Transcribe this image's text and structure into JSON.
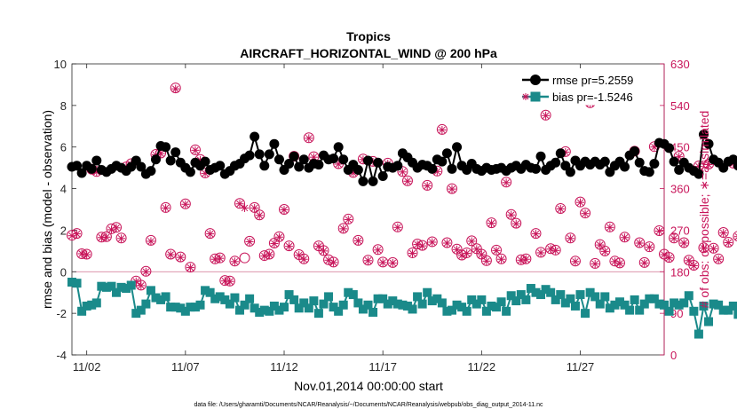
{
  "chart_data": {
    "type": "line",
    "title": "Tropics",
    "subtitle": "AIRCRAFT_HORIZONTAL_WIND @ 200 hPa",
    "xlabel": "Nov.01,2014 00:00:00 start",
    "ylabel_left": "rmse and bias (model - observation)",
    "ylabel_right": "# of obs: o=possible; ∗=assimilated",
    "footer": "data file: /Users/gharamti/Documents/NCAR/Reanalysis/~/Documents/NCAR/Reanalysis/webpub/obs_diag_output_2014-11.nc",
    "x_ticks": [
      {
        "day": 2,
        "label": "11/02"
      },
      {
        "day": 7,
        "label": "11/07"
      },
      {
        "day": 12,
        "label": "11/12"
      },
      {
        "day": 17,
        "label": "11/17"
      },
      {
        "day": 22,
        "label": "11/22"
      },
      {
        "day": 27,
        "label": "11/27"
      }
    ],
    "xlim": [
      1.25,
      31.25
    ],
    "ylim_left": [
      -4,
      10
    ],
    "ylim_right": [
      0,
      630
    ],
    "y_ticks_left": [
      -4,
      -2,
      0,
      2,
      4,
      6,
      8,
      10
    ],
    "y_ticks_right": [
      0,
      90,
      180,
      270,
      360,
      450,
      540,
      630
    ],
    "grid": false,
    "legend_position": "top-right",
    "colors": {
      "rmse": "#000000",
      "bias": "#1a8a8a",
      "obs": "#c8155a"
    },
    "series": [
      {
        "name": "rmse pr=5.2559",
        "values": [
          5.05,
          5.1,
          4.75,
          5.1,
          4.95,
          5.35,
          4.9,
          4.8,
          4.95,
          5.1,
          5.0,
          4.85,
          5.05,
          5.35,
          5.05,
          4.7,
          4.85,
          5.4,
          6.05,
          6.0,
          5.35,
          5.75,
          5.25,
          5.0,
          4.8,
          5.25,
          5.1,
          5.3,
          4.9,
          5.0,
          5.1,
          4.7,
          4.85,
          5.1,
          5.2,
          5.45,
          5.6,
          6.5,
          5.65,
          5.1,
          5.65,
          6.15,
          5.4,
          4.9,
          5.2,
          5.55,
          5.05,
          5.4,
          5.0,
          5.2,
          5.15,
          5.6,
          5.4,
          5.45,
          6.0,
          5.4,
          4.9,
          5.15,
          4.9,
          4.35,
          5.35,
          4.35,
          5.25,
          4.6,
          5.05,
          5.0,
          5.1,
          5.7,
          5.5,
          5.25,
          5.0,
          5.15,
          5.1,
          4.95,
          5.4,
          5.3,
          5.7,
          4.95,
          6.0,
          5.1,
          4.9,
          5.2,
          4.95,
          4.85,
          5.0,
          4.9,
          4.95,
          5.0,
          4.85,
          5.0,
          5.1,
          4.95,
          5.15,
          5.0,
          4.95,
          5.55,
          4.9,
          5.1,
          5.25,
          5.7,
          5.1,
          4.8,
          5.35,
          5.1,
          5.3,
          5.15,
          5.3,
          5.15,
          5.3,
          4.8,
          5.1,
          5.3,
          5.05,
          5.6,
          5.8,
          5.25,
          4.85,
          4.8,
          5.2,
          6.2,
          6.15,
          5.95,
          5.3,
          4.9,
          5.25,
          5.0,
          4.85,
          4.7,
          6.6,
          6.15,
          5.4,
          5.25,
          5.0,
          5.3,
          5.4,
          5.1,
          5.25,
          5.1,
          5.3
        ]
      },
      {
        "name": "bias pr=-1.5246",
        "values": [
          -0.5,
          -0.55,
          -1.9,
          -1.65,
          -1.6,
          -1.5,
          -0.7,
          -0.75,
          -0.7,
          -1.0,
          -0.75,
          -0.8,
          -0.65,
          -2.0,
          -1.85,
          -1.55,
          -0.9,
          -1.25,
          -1.35,
          -1.2,
          -1.7,
          -1.7,
          -1.75,
          -1.9,
          -1.7,
          -1.7,
          -1.6,
          -0.9,
          -1.0,
          -1.3,
          -1.2,
          -1.35,
          -1.55,
          -1.25,
          -1.85,
          -1.6,
          -1.3,
          -1.75,
          -1.95,
          -1.85,
          -1.9,
          -1.65,
          -1.85,
          -1.7,
          -1.1,
          -1.35,
          -1.75,
          -1.5,
          -1.75,
          -1.4,
          -2.0,
          -1.55,
          -1.2,
          -1.7,
          -1.9,
          -1.6,
          -1.0,
          -1.1,
          -1.5,
          -1.8,
          -1.6,
          -1.95,
          -1.3,
          -1.3,
          -1.55,
          -1.4,
          -1.55,
          -1.6,
          -1.65,
          -1.8,
          -1.2,
          -1.55,
          -1.0,
          -1.4,
          -1.3,
          -1.5,
          -1.9,
          -1.85,
          -1.6,
          -1.7,
          -1.9,
          -1.35,
          -1.55,
          -1.35,
          -1.9,
          -1.65,
          -1.7,
          -1.45,
          -1.9,
          -1.15,
          -1.4,
          -1.1,
          -1.35,
          -0.8,
          -1.0,
          -1.1,
          -0.85,
          -1.0,
          -1.35,
          -1.1,
          -1.5,
          -1.3,
          -1.65,
          -1.1,
          -2.0,
          -1.0,
          -1.2,
          -1.55,
          -1.2,
          -1.75,
          -1.6,
          -1.45,
          -1.6,
          -1.85,
          -1.35,
          -1.85,
          -1.55,
          -1.3,
          -1.3,
          -1.55,
          -1.6,
          -1.9,
          -1.5,
          -1.6,
          -1.5,
          -1.15,
          -1.9,
          -3.0,
          -1.65,
          -2.4,
          -1.55,
          -1.6,
          -1.85,
          -1.85,
          -1.65,
          -2.05,
          -1.85,
          -1.6,
          -1.65,
          -2.75,
          -1.6,
          -1.8,
          -1.5,
          -1.95,
          -1.75,
          -1.6,
          -1.5,
          -1.45,
          -1.45
        ]
      },
      {
        "name": "obs possible",
        "values": [
          259,
          263,
          219,
          218,
          402,
          397,
          255,
          256,
          273,
          276,
          253,
          407,
          414,
          160,
          151,
          181,
          248,
          434,
          437,
          319,
          218,
          578,
          212,
          327,
          190,
          444,
          423,
          394,
          263,
          208,
          210,
          161,
          160,
          203,
          328,
          210,
          246,
          319,
          303,
          215,
          218,
          242,
          256,
          315,
          236,
          430,
          217,
          208,
          470,
          429,
          236,
          226,
          206,
          201,
          414,
          274,
          294,
          395,
          248,
          424,
          205,
          419,
          228,
          201,
          415,
          200,
          277,
          397,
          377,
          221,
          240,
          237,
          367,
          245,
          398,
          488,
          243,
          360,
          229,
          216,
          221,
          247,
          230,
          218,
          204,
          286,
          227,
          208,
          374,
          304,
          285,
          206,
          208,
          563,
          263,
          222,
          519,
          230,
          227,
          317,
          440,
          253,
          203,
          331,
          307,
          546,
          198,
          239,
          225,
          277,
          203,
          199,
          255,
          556,
          441,
          243,
          200,
          234,
          451,
          269,
          218,
          211,
          253,
          430,
          243,
          205,
          194,
          409,
          232,
          413,
          231,
          208,
          265,
          244,
          415,
          257,
          397,
          267,
          249,
          160,
          334,
          6
        ]
      },
      {
        "name": "obs assimilated",
        "values": [
          258,
          262,
          219,
          217,
          400,
          396,
          254,
          255,
          271,
          275,
          252,
          406,
          413,
          159,
          150,
          180,
          246,
          433,
          436,
          318,
          217,
          576,
          211,
          326,
          189,
          443,
          422,
          393,
          262,
          207,
          209,
          160,
          159,
          202,
          327,
          318,
          245,
          318,
          302,
          214,
          217,
          241,
          255,
          314,
          235,
          429,
          216,
          207,
          469,
          428,
          235,
          225,
          205,
          200,
          413,
          273,
          293,
          394,
          247,
          423,
          204,
          418,
          227,
          200,
          414,
          199,
          276,
          396,
          376,
          220,
          239,
          236,
          366,
          244,
          397,
          487,
          242,
          359,
          228,
          215,
          220,
          246,
          229,
          217,
          203,
          285,
          226,
          207,
          373,
          303,
          284,
          205,
          207,
          562,
          262,
          221,
          518,
          229,
          226,
          316,
          439,
          252,
          202,
          330,
          306,
          545,
          197,
          238,
          224,
          276,
          202,
          198,
          254,
          555,
          440,
          242,
          199,
          233,
          450,
          268,
          217,
          210,
          252,
          429,
          242,
          204,
          193,
          408,
          231,
          412,
          230,
          207,
          264,
          243,
          414,
          256,
          396,
          266,
          248,
          159,
          333,
          5
        ]
      }
    ]
  }
}
